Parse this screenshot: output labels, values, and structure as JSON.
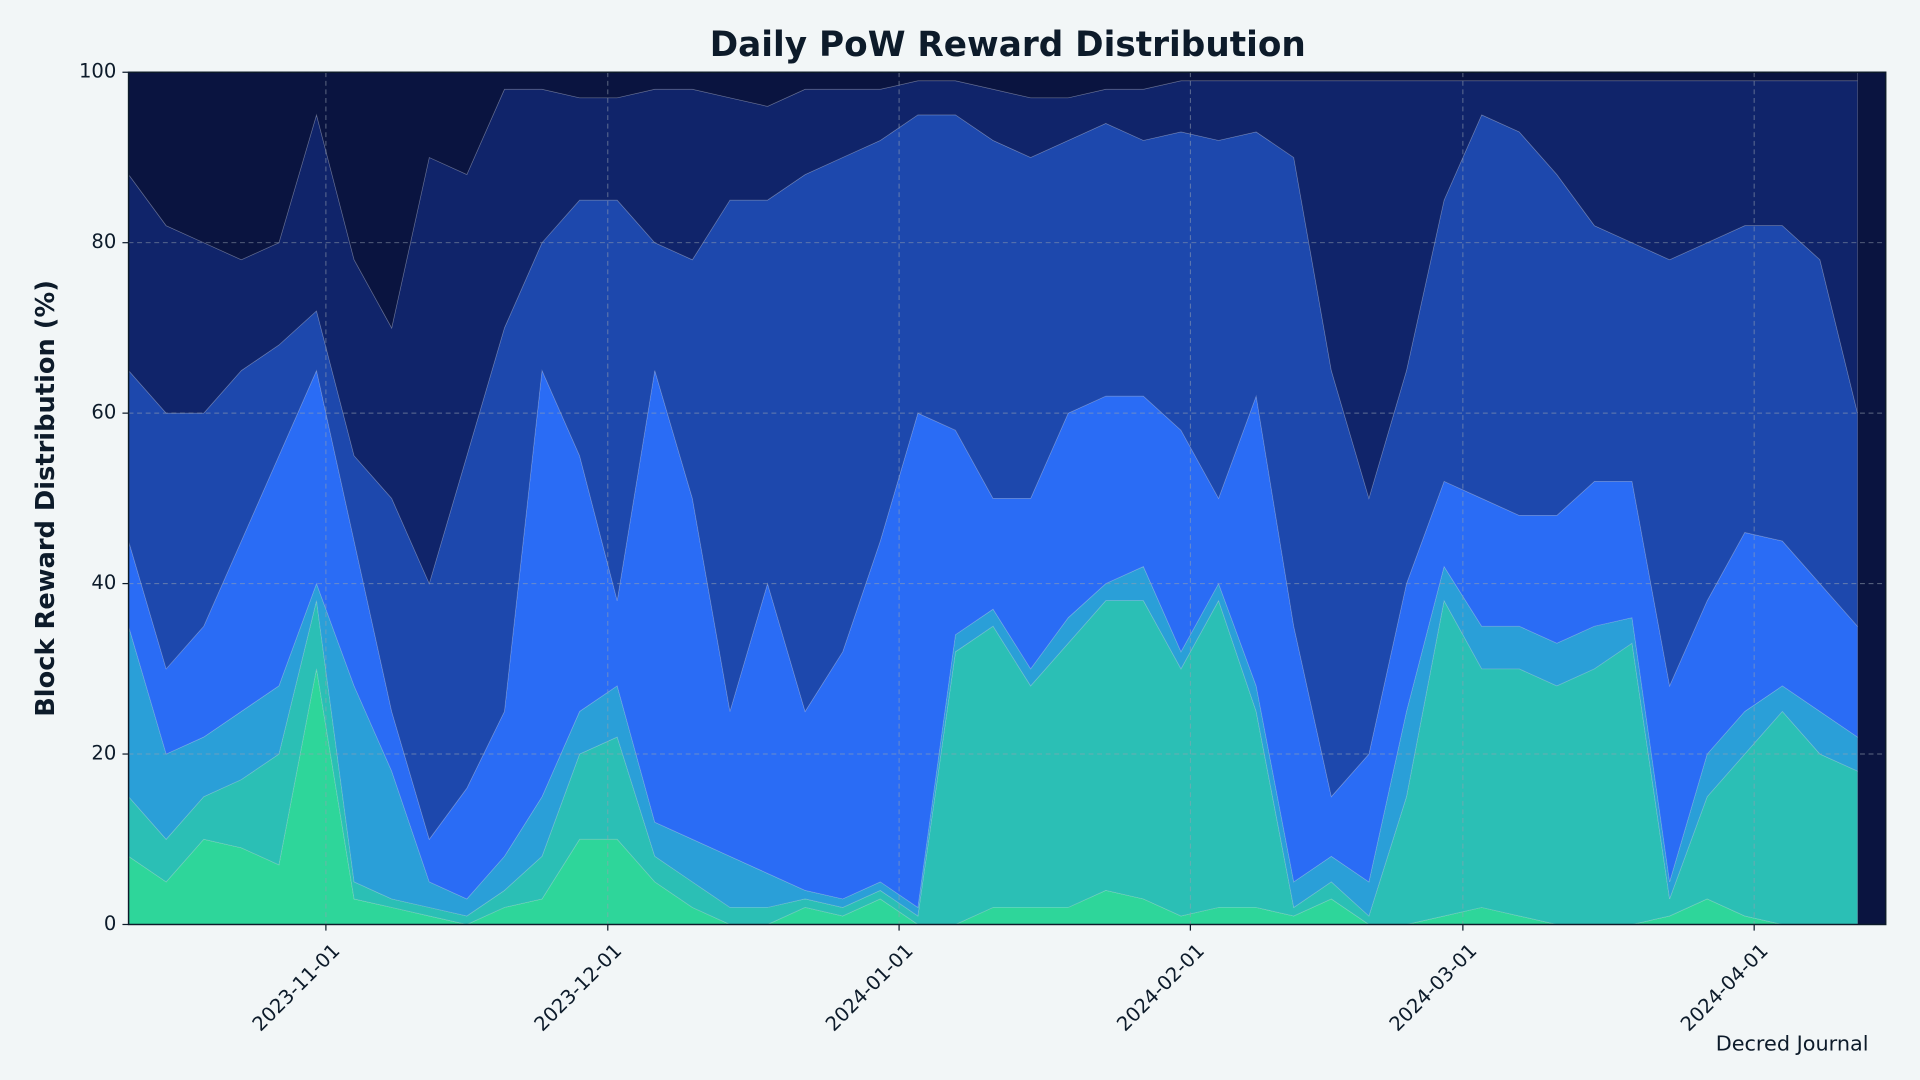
{
  "chart_data": {
    "type": "stacked-area",
    "title": "Daily PoW Reward Distribution",
    "ylabel": "Block Reward Distribution (%)",
    "source": "Decred Journal",
    "grid": true,
    "xlim": [
      "2023-10-11",
      "2024-04-15"
    ],
    "xticks": [
      "2023-11-01",
      "2023-12-01",
      "2024-01-01",
      "2024-02-01",
      "2024-03-01",
      "2024-04-01"
    ],
    "ylim": [
      0,
      100
    ],
    "yticks": [
      0,
      20,
      40,
      60,
      80,
      100
    ],
    "x": [
      "2023-10-11",
      "2023-10-15",
      "2023-10-19",
      "2023-10-23",
      "2023-10-27",
      "2023-10-31",
      "2023-11-04",
      "2023-11-08",
      "2023-11-12",
      "2023-11-16",
      "2023-11-20",
      "2023-11-24",
      "2023-11-28",
      "2023-12-02",
      "2023-12-06",
      "2023-12-10",
      "2023-12-14",
      "2023-12-18",
      "2023-12-22",
      "2023-12-26",
      "2023-12-30",
      "2024-01-03",
      "2024-01-07",
      "2024-01-11",
      "2024-01-15",
      "2024-01-19",
      "2024-01-23",
      "2024-01-27",
      "2024-01-31",
      "2024-02-04",
      "2024-02-08",
      "2024-02-12",
      "2024-02-16",
      "2024-02-20",
      "2024-02-24",
      "2024-02-28",
      "2024-03-03",
      "2024-03-07",
      "2024-03-11",
      "2024-03-15",
      "2024-03-19",
      "2024-03-23",
      "2024-03-27",
      "2024-03-31",
      "2024-04-04",
      "2024-04-08",
      "2024-04-12"
    ],
    "series": [
      {
        "color": "#2ed69a",
        "values": [
          8,
          5,
          10,
          9,
          7,
          30,
          3,
          2,
          1,
          0,
          2,
          3,
          10,
          10,
          5,
          2,
          0,
          0,
          2,
          1,
          3,
          0,
          0,
          2,
          2,
          2,
          4,
          3,
          1,
          2,
          2,
          1,
          3,
          0,
          0,
          1,
          2,
          1,
          0,
          0,
          0,
          1,
          3,
          1,
          0,
          0,
          0
        ]
      },
      {
        "color": "#2bbfb5",
        "values": [
          7,
          5,
          5,
          8,
          13,
          8,
          2,
          1,
          1,
          1,
          2,
          5,
          10,
          12,
          3,
          3,
          2,
          2,
          1,
          1,
          1,
          1,
          32,
          33,
          26,
          31,
          34,
          35,
          29,
          36,
          23,
          1,
          2,
          1,
          15,
          37,
          28,
          29,
          28,
          30,
          33,
          2,
          12,
          19,
          25,
          20,
          18
        ]
      },
      {
        "color": "#2a9fd8",
        "values": [
          20,
          10,
          7,
          8,
          8,
          2,
          23,
          15,
          3,
          2,
          4,
          7,
          5,
          6,
          4,
          5,
          6,
          4,
          1,
          1,
          1,
          1,
          2,
          2,
          2,
          3,
          2,
          4,
          2,
          2,
          3,
          3,
          3,
          4,
          10,
          4,
          5,
          5,
          5,
          5,
          3,
          2,
          5,
          5,
          3,
          5,
          4
        ]
      },
      {
        "color": "#2a6cf5",
        "values": [
          10,
          10,
          13,
          20,
          27,
          25,
          17,
          7,
          5,
          13,
          17,
          50,
          30,
          10,
          53,
          40,
          17,
          34,
          21,
          29,
          40,
          58,
          24,
          13,
          20,
          24,
          22,
          20,
          26,
          10,
          34,
          30,
          7,
          15,
          15,
          10,
          15,
          13,
          15,
          17,
          16,
          23,
          18,
          21,
          17,
          15,
          13
        ]
      },
      {
        "color": "#1d48ad",
        "values": [
          20,
          30,
          25,
          20,
          13,
          7,
          10,
          25,
          30,
          39,
          45,
          15,
          30,
          47,
          15,
          28,
          60,
          45,
          63,
          58,
          47,
          35,
          37,
          42,
          40,
          32,
          32,
          30,
          35,
          42,
          31,
          55,
          50,
          30,
          25,
          33,
          45,
          45,
          40,
          30,
          28,
          50,
          42,
          36,
          37,
          38,
          25
        ]
      },
      {
        "color": "#10246a",
        "values": [
          23,
          22,
          20,
          13,
          12,
          23,
          23,
          20,
          50,
          33,
          28,
          18,
          12,
          12,
          18,
          20,
          12,
          11,
          10,
          8,
          6,
          4,
          4,
          6,
          7,
          5,
          4,
          6,
          6,
          7,
          6,
          9,
          34,
          49,
          34,
          14,
          4,
          6,
          11,
          17,
          19,
          21,
          19,
          17,
          17,
          21,
          39
        ]
      },
      {
        "color": "#0a1440",
        "values": [
          12,
          18,
          20,
          22,
          20,
          5,
          22,
          30,
          10,
          12,
          2,
          2,
          3,
          3,
          2,
          2,
          3,
          4,
          2,
          2,
          2,
          1,
          1,
          2,
          3,
          3,
          2,
          2,
          1,
          1,
          1,
          1,
          1,
          1,
          1,
          1,
          1,
          1,
          1,
          1,
          1,
          1,
          1,
          1,
          1,
          1,
          1
        ]
      }
    ]
  }
}
